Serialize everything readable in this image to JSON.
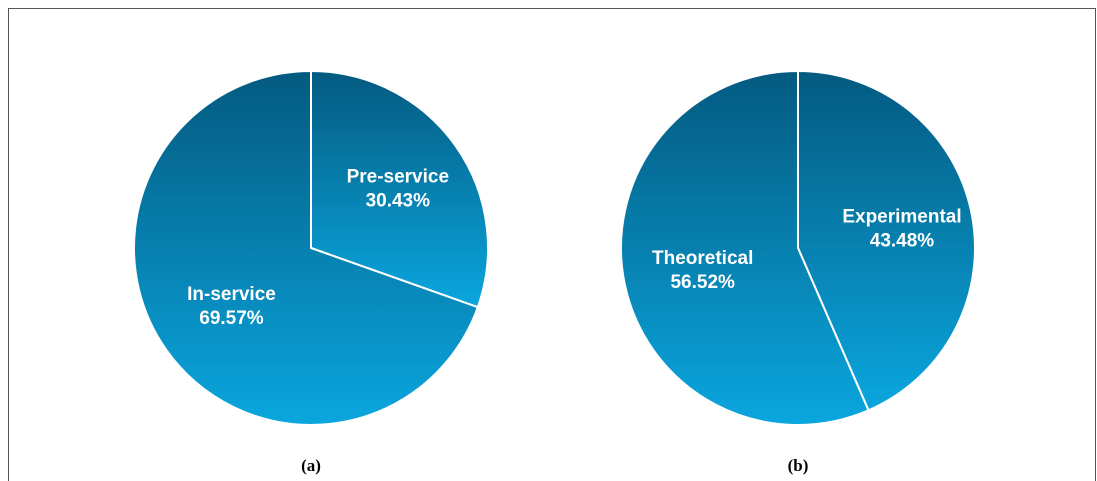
{
  "chart_data": [
    {
      "type": "pie",
      "panel_label": "(a)",
      "slices": [
        {
          "label": "Pre-service",
          "value": 30.43,
          "value_text": "30.43%"
        },
        {
          "label": "In-service",
          "value": 69.57,
          "value_text": "69.57%"
        }
      ],
      "colors": {
        "top": "#045a80",
        "bottom": "#0aa6de",
        "divider": "#ffffff"
      }
    },
    {
      "type": "pie",
      "panel_label": "(b)",
      "slices": [
        {
          "label": "Experimental",
          "value": 43.48,
          "value_text": "43.48%"
        },
        {
          "label": "Theoretical",
          "value": 56.52,
          "value_text": "56.52%"
        }
      ],
      "colors": {
        "top": "#045a80",
        "bottom": "#0aa6de",
        "divider": "#ffffff"
      }
    }
  ]
}
